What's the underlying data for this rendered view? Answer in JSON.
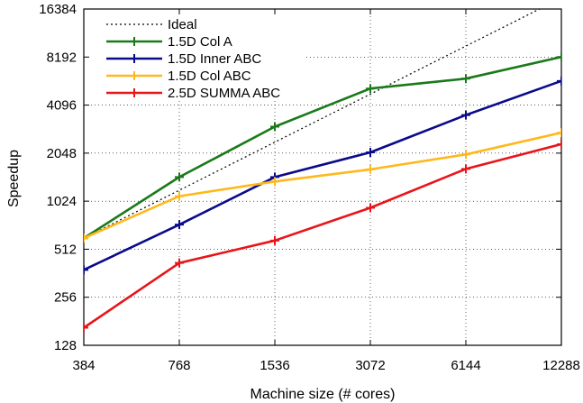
{
  "chart_data": {
    "type": "line",
    "xscale": "log2",
    "yscale": "log2",
    "title": "",
    "xlabel": "Machine size (# cores)",
    "ylabel": "Speedup",
    "xlim": [
      384,
      12288
    ],
    "ylim": [
      128,
      16384
    ],
    "x": [
      384,
      768,
      1536,
      3072,
      6144,
      12288
    ],
    "x_tick_labels": [
      "384",
      "768",
      "1536",
      "3072",
      "6144",
      "12288"
    ],
    "y_ticks": [
      128,
      256,
      512,
      1024,
      2048,
      4096,
      8192,
      16384
    ],
    "y_tick_labels": [
      "128",
      "256",
      "512",
      "1024",
      "2048",
      "4096",
      "8192",
      "16384"
    ],
    "grid": "dotted",
    "legend_position": "top-left",
    "series": [
      {
        "name": "Ideal",
        "style": "dotted",
        "color": "#000000",
        "values": [
          600,
          1200,
          2400,
          4800,
          9600,
          19200
        ]
      },
      {
        "name": "1.5D Col A",
        "style": "solid",
        "color": "#1a7a1a",
        "values": [
          600,
          1450,
          3000,
          5200,
          6000,
          8200
        ]
      },
      {
        "name": "1.5D Inner ABC",
        "style": "solid",
        "color": "#0a0a8c",
        "values": [
          380,
          730,
          1450,
          2070,
          3550,
          5800
        ]
      },
      {
        "name": "1.5D Col ABC",
        "style": "solid",
        "color": "#ffb81c",
        "values": [
          600,
          1100,
          1360,
          1620,
          2010,
          2750
        ]
      },
      {
        "name": "2.5D SUMMA ABC",
        "style": "solid",
        "color": "#e8151b",
        "values": [
          165,
          420,
          580,
          930,
          1630,
          2330
        ]
      }
    ]
  }
}
